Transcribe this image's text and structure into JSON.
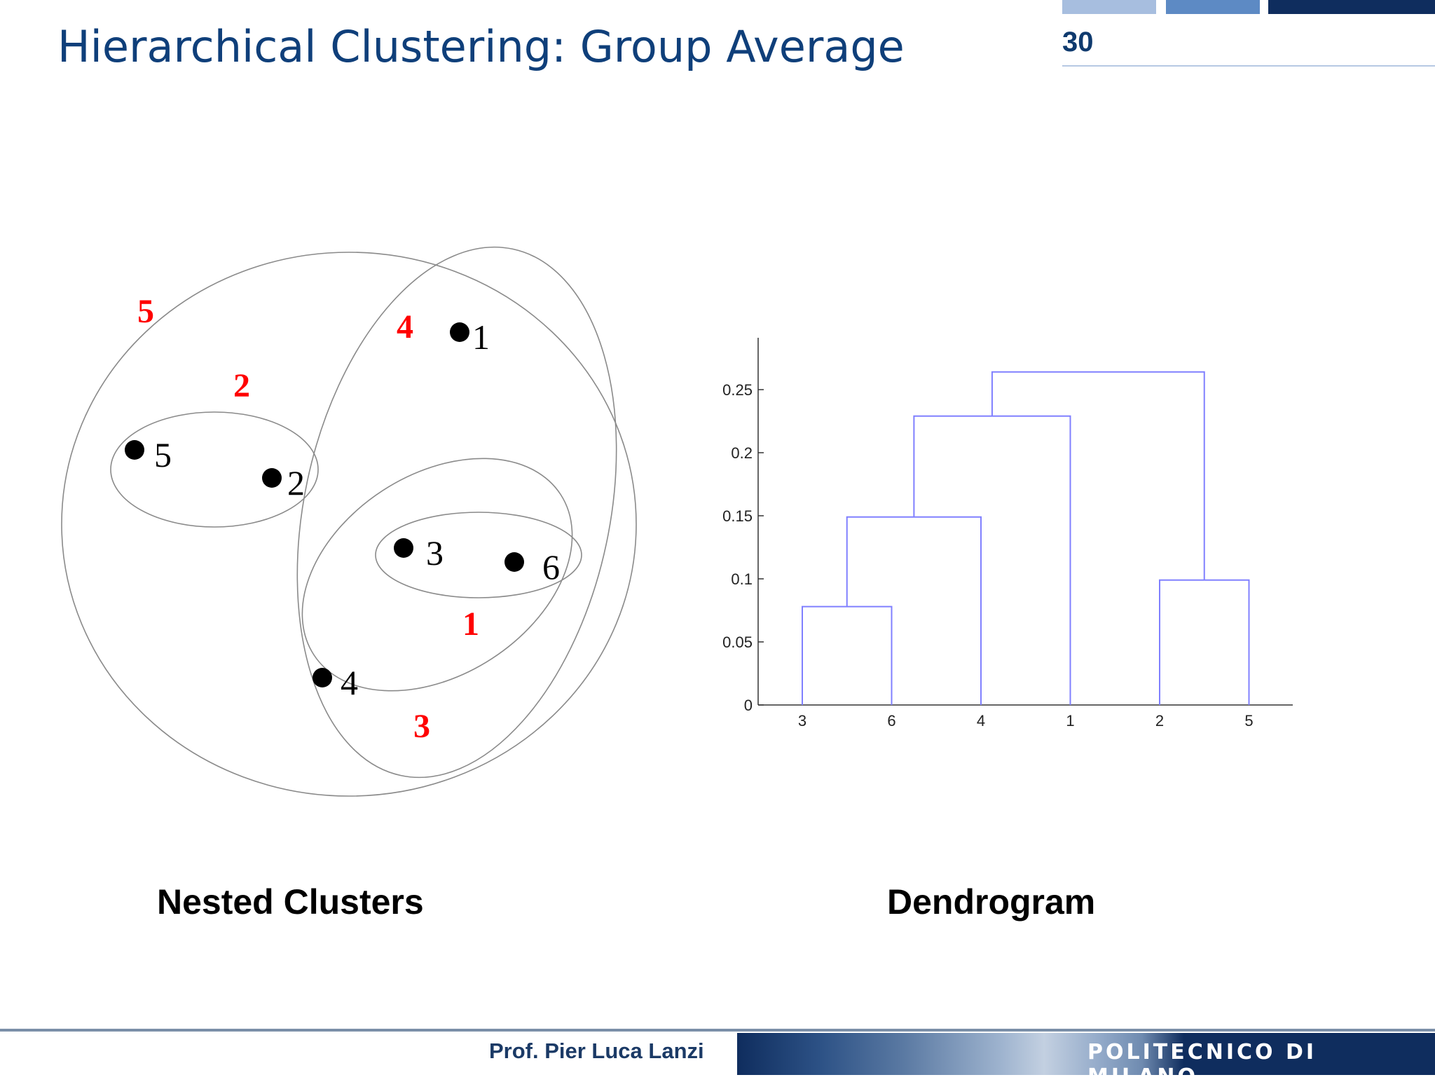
{
  "slide": {
    "title": "Hierarchical Clustering: Group Average",
    "number": "30"
  },
  "nested_clusters": {
    "caption": "Nested Clusters",
    "points": [
      {
        "label": "1"
      },
      {
        "label": "2"
      },
      {
        "label": "3"
      },
      {
        "label": "4"
      },
      {
        "label": "5"
      },
      {
        "label": "6"
      }
    ],
    "cluster_labels": [
      "1",
      "2",
      "3",
      "4",
      "5"
    ],
    "cluster_label_color": "#ff0000"
  },
  "dendrogram": {
    "caption": "Dendrogram",
    "line_color": "#8080ff"
  },
  "chart_data": {
    "type": "dendrogram",
    "leaf_order": [
      "3",
      "6",
      "4",
      "1",
      "2",
      "5"
    ],
    "yticks": [
      "0",
      "0.05",
      "0.1",
      "0.15",
      "0.2",
      "0.25"
    ],
    "ylim": [
      0,
      0.28
    ],
    "merges": [
      {
        "left": "3",
        "right": "6",
        "height": 0.078
      },
      {
        "left": "2",
        "right": "5",
        "height": 0.099
      },
      {
        "left": "3,6",
        "right": "4",
        "height": 0.149
      },
      {
        "left": "3,6,4",
        "right": "1",
        "height": 0.229
      },
      {
        "left": "3,6,4,1",
        "right": "2,5",
        "height": 0.264
      }
    ]
  },
  "footer": {
    "author": "Prof. Pier Luca Lanzi",
    "institution": "POLITECNICO DI MILANO"
  }
}
